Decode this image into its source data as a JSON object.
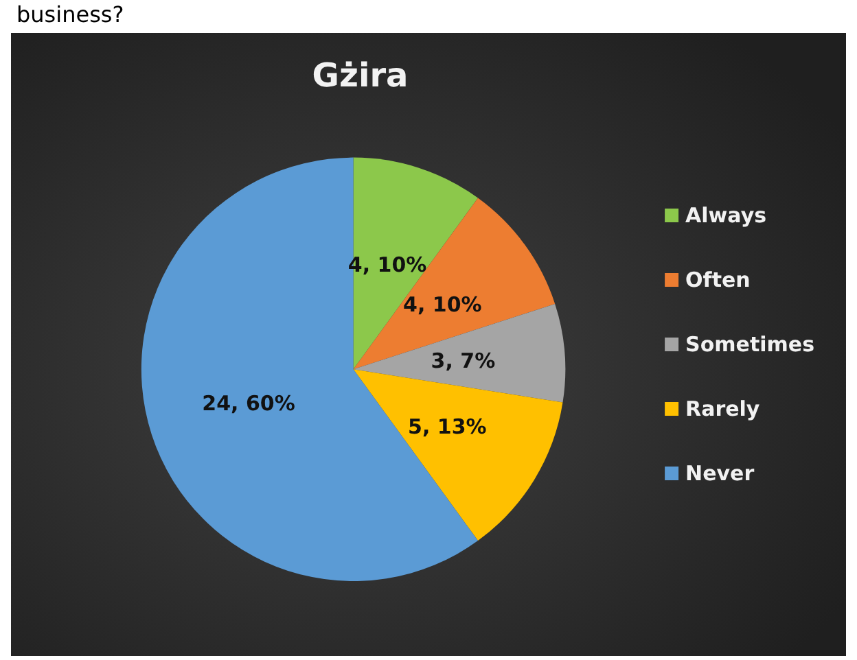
{
  "chart_data": {
    "type": "pie",
    "title": "Gżira",
    "annotations": [
      "business?"
    ],
    "categories": [
      "Always",
      "Often",
      "Sometimes",
      "Rarely",
      "Never"
    ],
    "values": [
      4,
      4,
      3,
      5,
      24
    ],
    "value_labels": [
      "4, 10%",
      "4, 10%",
      "3, 7%",
      "5, 13%",
      "24, 60%"
    ],
    "colors": [
      "#8cc84b",
      "#ed7d31",
      "#a5a5a5",
      "#ffc000",
      "#5b9bd5"
    ],
    "legend": "right"
  }
}
